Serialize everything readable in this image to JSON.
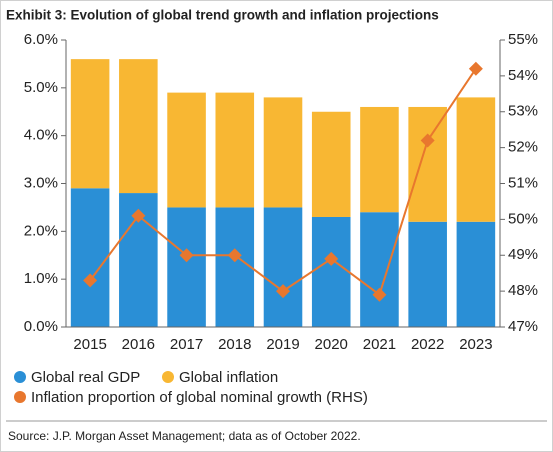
{
  "chart_data": {
    "type": "bar",
    "title": "Exhibit 3: Evolution of global trend growth and inflation projections",
    "categories": [
      "2015",
      "2016",
      "2017",
      "2018",
      "2019",
      "2020",
      "2021",
      "2022",
      "2023"
    ],
    "stacked": true,
    "series": [
      {
        "name": "Global real GDP",
        "color": "#2a8fd6",
        "values": [
          2.9,
          2.8,
          2.5,
          2.5,
          2.5,
          2.3,
          2.4,
          2.2,
          2.2
        ]
      },
      {
        "name": "Global inflation",
        "color": "#f8b733",
        "values": [
          2.7,
          2.8,
          2.4,
          2.4,
          2.3,
          2.2,
          2.2,
          2.4,
          2.6
        ]
      },
      {
        "name": "Inflation proportion of global nominal growth (RHS)",
        "color": "#e8772e",
        "type": "line",
        "axis": "y2",
        "values": [
          48.3,
          50.1,
          49.0,
          49.0,
          48.0,
          48.9,
          47.9,
          52.2,
          54.2
        ]
      }
    ],
    "ylim": [
      0,
      6
    ],
    "yticks": [
      {
        "value": 0,
        "label": "0.0%"
      },
      {
        "value": 1,
        "label": "1.0%"
      },
      {
        "value": 2,
        "label": "2.0%"
      },
      {
        "value": 3,
        "label": "3.0%"
      },
      {
        "value": 4,
        "label": "4.0%"
      },
      {
        "value": 5,
        "label": "5.0%"
      },
      {
        "value": 6,
        "label": "6.0%"
      }
    ],
    "y2lim": [
      47,
      55
    ],
    "y2ticks": [
      {
        "value": 47,
        "label": "47%"
      },
      {
        "value": 48,
        "label": "48%"
      },
      {
        "value": 49,
        "label": "49%"
      },
      {
        "value": 50,
        "label": "50%"
      },
      {
        "value": 51,
        "label": "51%"
      },
      {
        "value": 52,
        "label": "52%"
      },
      {
        "value": 53,
        "label": "53%"
      },
      {
        "value": 54,
        "label": "54%"
      },
      {
        "value": 55,
        "label": "55%"
      }
    ],
    "grid": false,
    "source": "Source: J.P. Morgan Asset Management; data as of October 2022."
  }
}
